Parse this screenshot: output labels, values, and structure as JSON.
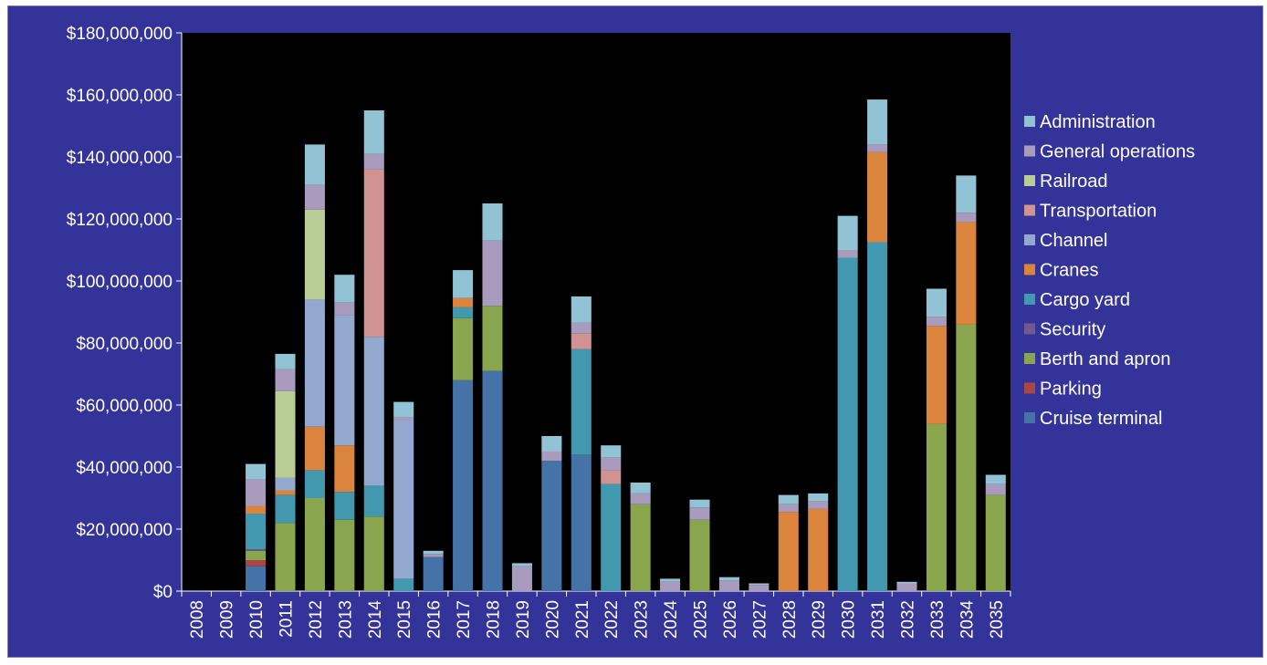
{
  "chart_data": {
    "type": "bar",
    "stacked": true,
    "title": "",
    "xlabel": "",
    "ylabel": "",
    "ylim": [
      0,
      180000000
    ],
    "y_ticks": [
      0,
      20000000,
      40000000,
      60000000,
      80000000,
      100000000,
      120000000,
      140000000,
      160000000,
      180000000
    ],
    "y_tick_labels": [
      "$0",
      "$20,000,000",
      "$40,000,000",
      "$60,000,000",
      "$80,000,000",
      "$100,000,000",
      "$120,000,000",
      "$140,000,000",
      "$160,000,000",
      "$180,000,000"
    ],
    "grid": false,
    "legend_position": "right",
    "categories": [
      "2008",
      "2009",
      "2010",
      "2011",
      "2012",
      "2013",
      "2014",
      "2015",
      "2016",
      "2017",
      "2018",
      "2019",
      "2020",
      "2021",
      "2022",
      "2023",
      "2024",
      "2025",
      "2026",
      "2027",
      "2028",
      "2029",
      "2030",
      "2031",
      "2032",
      "2033",
      "2034",
      "2035"
    ],
    "series": [
      {
        "name": "Cruise terminal",
        "color": "#4572a7",
        "values": [
          0,
          0,
          8000000,
          0,
          0,
          0,
          0,
          0,
          11000000,
          68000000,
          71000000,
          0,
          42000000,
          44000000,
          0,
          0,
          0,
          0,
          0,
          0,
          0,
          0,
          0,
          0,
          0,
          0,
          0,
          0
        ]
      },
      {
        "name": "Parking",
        "color": "#aa4643",
        "values": [
          0,
          0,
          2000000,
          0,
          0,
          0,
          0,
          0,
          0,
          0,
          0,
          0,
          0,
          0,
          0,
          0,
          0,
          0,
          0,
          0,
          0,
          0,
          0,
          0,
          0,
          0,
          0,
          0
        ]
      },
      {
        "name": "Berth and apron",
        "color": "#89a54e",
        "values": [
          0,
          0,
          3000000,
          22000000,
          30000000,
          23000000,
          24000000,
          0,
          0,
          20000000,
          21000000,
          0,
          0,
          0,
          0,
          28000000,
          0,
          23000000,
          0,
          0,
          0,
          0,
          0,
          0,
          0,
          54000000,
          86000000,
          31000000
        ]
      },
      {
        "name": "Security",
        "color": "#71588f",
        "values": [
          0,
          0,
          500000,
          0,
          0,
          0,
          0,
          0,
          0,
          0,
          0,
          0,
          0,
          0,
          0,
          0,
          0,
          0,
          0,
          0,
          0,
          0,
          0,
          0,
          0,
          0,
          0,
          0
        ]
      },
      {
        "name": "Cargo yard",
        "color": "#4198af",
        "values": [
          0,
          0,
          11500000,
          9000000,
          9000000,
          9000000,
          10000000,
          4000000,
          0,
          3500000,
          0,
          0,
          0,
          34000000,
          34500000,
          0,
          0,
          0,
          0,
          0,
          0,
          0,
          107500000,
          112500000,
          0,
          0,
          0,
          0
        ]
      },
      {
        "name": "Cranes",
        "color": "#db843d",
        "values": [
          0,
          0,
          2500000,
          1500000,
          14000000,
          15000000,
          0,
          0,
          0,
          3000000,
          0,
          0,
          0,
          0,
          0,
          0,
          0,
          0,
          0,
          0,
          25500000,
          26500000,
          0,
          29000000,
          0,
          31500000,
          33000000,
          0
        ]
      },
      {
        "name": "Channel",
        "color": "#93a9cf",
        "values": [
          0,
          0,
          0,
          4000000,
          41000000,
          42000000,
          48000000,
          51000000,
          0,
          0,
          0,
          0,
          0,
          0,
          0,
          0,
          0,
          0,
          0,
          0,
          0,
          0,
          0,
          0,
          0,
          0,
          0,
          0
        ]
      },
      {
        "name": "Transportation",
        "color": "#d19392",
        "values": [
          0,
          0,
          0,
          0,
          0,
          0,
          54000000,
          0,
          0,
          0,
          0,
          0,
          0,
          5000000,
          4500000,
          0,
          0,
          0,
          0,
          0,
          0,
          0,
          0,
          0,
          0,
          0,
          0,
          0
        ]
      },
      {
        "name": "Railroad",
        "color": "#b9cd96",
        "values": [
          0,
          0,
          0,
          28000000,
          29000000,
          0,
          0,
          0,
          0,
          0,
          0,
          0,
          0,
          0,
          0,
          0,
          0,
          0,
          0,
          0,
          0,
          0,
          0,
          0,
          0,
          0,
          0,
          0
        ]
      },
      {
        "name": "General operations",
        "color": "#a99bbd",
        "values": [
          0,
          0,
          8500000,
          7000000,
          8000000,
          4000000,
          5000000,
          1000000,
          1000000,
          0,
          21000000,
          8000000,
          3000000,
          3500000,
          4000000,
          3500000,
          3000000,
          4000000,
          3500000,
          2000000,
          2500000,
          2500000,
          2500000,
          2500000,
          2500000,
          3000000,
          3000000,
          3500000
        ]
      },
      {
        "name": "Administration",
        "color": "#91c3d5",
        "values": [
          0,
          0,
          5000000,
          5000000,
          13000000,
          9000000,
          14000000,
          5000000,
          1000000,
          9000000,
          12000000,
          1000000,
          5000000,
          8500000,
          4000000,
          3500000,
          1000000,
          2500000,
          1000000,
          500000,
          3000000,
          2500000,
          11000000,
          14500000,
          500000,
          9000000,
          12000000,
          3000000
        ]
      }
    ]
  }
}
